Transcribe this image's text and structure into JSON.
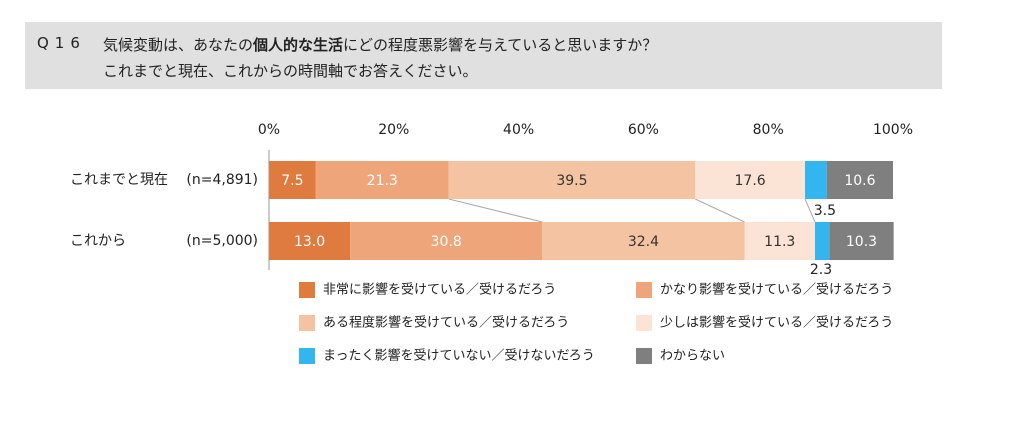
{
  "question": {
    "number": "Q16",
    "line1_pre": "気候変動は、あなたの",
    "line1_bold": "個人的な生活",
    "line1_post": "にどの程度悪影響を与えていると思いますか？",
    "line2": "これまでと現在、これからの時間軸でお答えください。"
  },
  "chart_data": {
    "type": "bar",
    "orientation": "horizontal-stacked-100",
    "x_ticks": [
      "0%",
      "20%",
      "40%",
      "60%",
      "80%",
      "100%"
    ],
    "xlim": [
      0,
      100
    ],
    "categories": [
      "これまでと現在",
      "これから"
    ],
    "sample_sizes": [
      "(n=4,891)",
      "(n=5,000)"
    ],
    "series": [
      {
        "name": "非常に影響を受けている／受けるだろう",
        "color": "#e07b3f",
        "values": [
          7.5,
          13.0
        ],
        "labels": [
          "7.5",
          "13.0"
        ]
      },
      {
        "name": "かなり影響を受けている／受けるだろう",
        "color": "#eea57a",
        "values": [
          21.3,
          30.8
        ],
        "labels": [
          "21.3",
          "30.8"
        ]
      },
      {
        "name": "ある程度影響を受けている／受けるだろう",
        "color": "#f4c4a2",
        "values": [
          39.5,
          32.4
        ],
        "labels": [
          "39.5",
          "32.4"
        ]
      },
      {
        "name": "少しは影響を受けている／受けるだろう",
        "color": "#fbe3d6",
        "values": [
          17.6,
          11.3
        ],
        "labels": [
          "17.6",
          "11.3"
        ]
      },
      {
        "name": "まったく影響を受けていない／受けないだろう",
        "color": "#33b5f0",
        "values": [
          3.5,
          2.3
        ],
        "labels": [
          "3.5",
          "2.3"
        ]
      },
      {
        "name": "わからない",
        "color": "#7f7f7f",
        "values": [
          10.6,
          10.3
        ],
        "labels": [
          "10.6",
          "10.3"
        ]
      }
    ],
    "legend_placement": "bottom",
    "grid": false
  }
}
